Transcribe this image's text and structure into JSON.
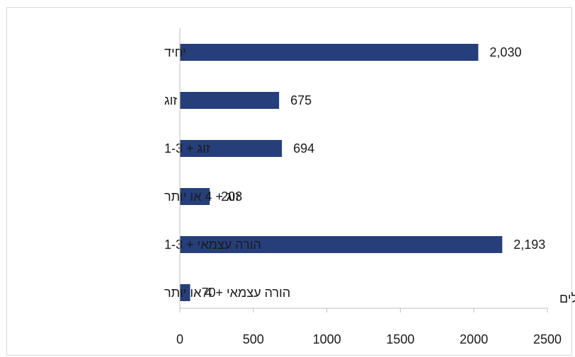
{
  "chart_data": {
    "type": "bar",
    "orientation": "horizontal",
    "categories": [
      "יחיד",
      "זוג",
      "זוג + 1-3",
      "זוג + 4 או יותר",
      "הורה עצמאי + 1-3",
      "הורה עצמאי + 4 או יותר"
    ],
    "values": [
      2030,
      675,
      694,
      203,
      2193,
      70
    ],
    "value_labels": [
      "2,030",
      "675",
      "694",
      "203",
      "2,193",
      "70"
    ],
    "title": "",
    "xlabel": "משקי בית של עולים",
    "ylabel": "",
    "xlim": [
      0,
      2500
    ],
    "x_ticks": [
      0,
      500,
      1000,
      1500,
      2000,
      2500
    ],
    "x_tick_labels": [
      "0",
      "500",
      "1000",
      "1500",
      "2000",
      "2500"
    ],
    "grid": false,
    "legend": "none",
    "bar_color": "#263f7a",
    "border_color": "#d9d9d9"
  }
}
